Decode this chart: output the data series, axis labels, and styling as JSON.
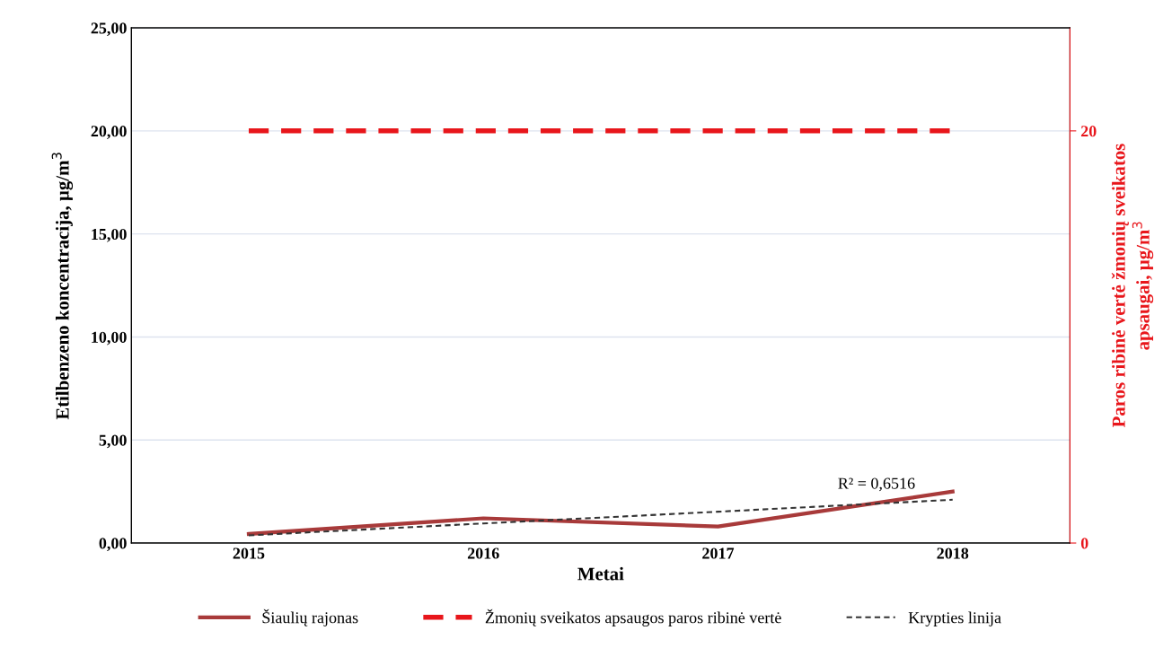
{
  "chart_data": {
    "type": "line",
    "xlabel": "Metai",
    "ylabel": "Etilbenzeno koncentracija, µg/m$^{3}$",
    "y2label": "Paros ribinė vertė žmonių sveikatos\napsaugai, µg/m$^{3}$",
    "categories": [
      "2015",
      "2016",
      "2017",
      "2018"
    ],
    "series": [
      {
        "name": "Šiaulių rajonas",
        "color": "#a83a3a",
        "values": [
          0.44,
          1.2,
          0.8,
          2.5
        ]
      },
      {
        "name": "Žmonių sveikatos apsaugos paros ribinė vertė",
        "color": "#e8161b",
        "values": [
          20,
          20,
          20,
          20
        ],
        "axis": "y2",
        "line_style": "dashed"
      },
      {
        "name": "Krypties linija",
        "color": "#333333",
        "values": [
          0.37,
          0.95,
          1.52,
          2.1
        ],
        "line_style": "dashed"
      }
    ],
    "ylim": [
      0,
      25
    ],
    "yticks": [
      {
        "value": 0,
        "label": "0,00"
      },
      {
        "value": 5,
        "label": "5,00"
      },
      {
        "value": 10,
        "label": "10,00"
      },
      {
        "value": 15,
        "label": "15,00"
      },
      {
        "value": 20,
        "label": "20,00"
      },
      {
        "value": 25,
        "label": "25,00"
      }
    ],
    "y2lim": [
      0,
      25
    ],
    "y2ticks": [
      0,
      20
    ],
    "annotations": [
      {
        "text": "R² = 0,6516",
        "x": "2018",
        "y": 2.1
      }
    ],
    "grid": "y",
    "legend": "bottom"
  }
}
